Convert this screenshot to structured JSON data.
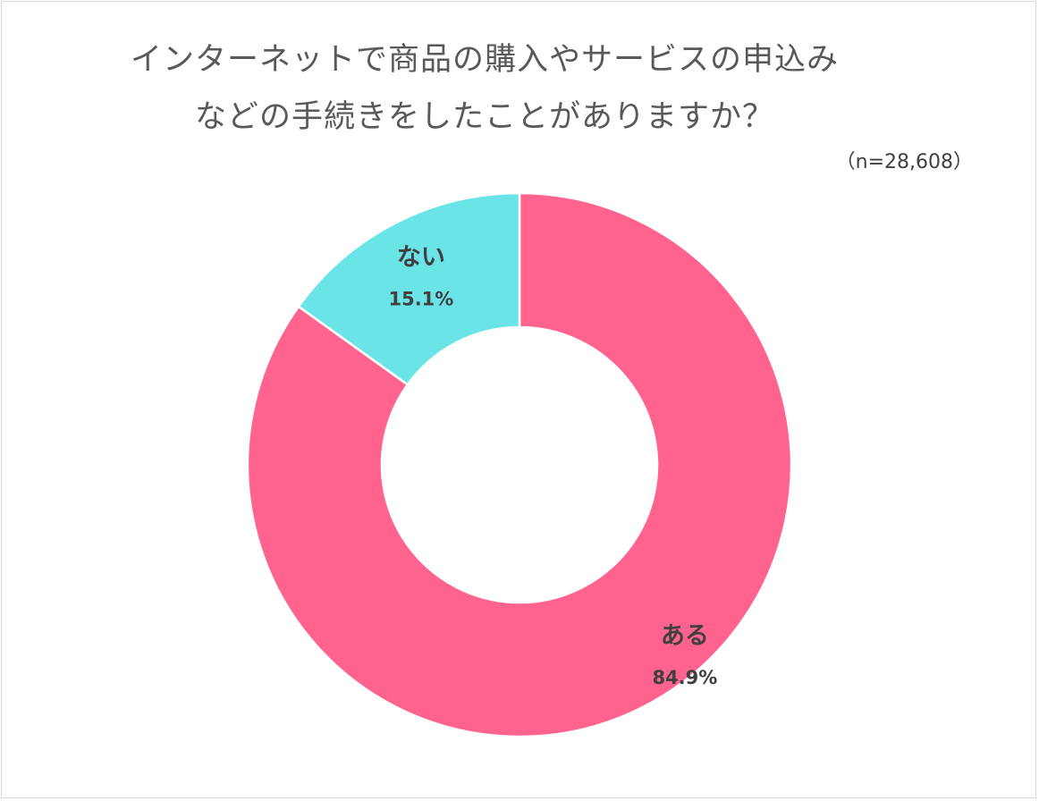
{
  "chart_data": {
    "type": "pie",
    "variant": "donut",
    "title": "インターネットで商品の購入やサービスの申込みなどの手続きをしたことがありますか？",
    "title_lines": [
      "インターネットで商品の購入やサービスの申込み",
      "などの手続きをしたことがありますか？"
    ],
    "note": "（n=28,608）",
    "categories": [
      "ある",
      "ない"
    ],
    "values": [
      84.9,
      15.1
    ],
    "value_labels": [
      "84.9%",
      "15.1%"
    ],
    "colors": [
      "#FF638E",
      "#6BE4E8"
    ],
    "start": "12 o'clock",
    "direction": "clockwise",
    "legend": "none"
  }
}
